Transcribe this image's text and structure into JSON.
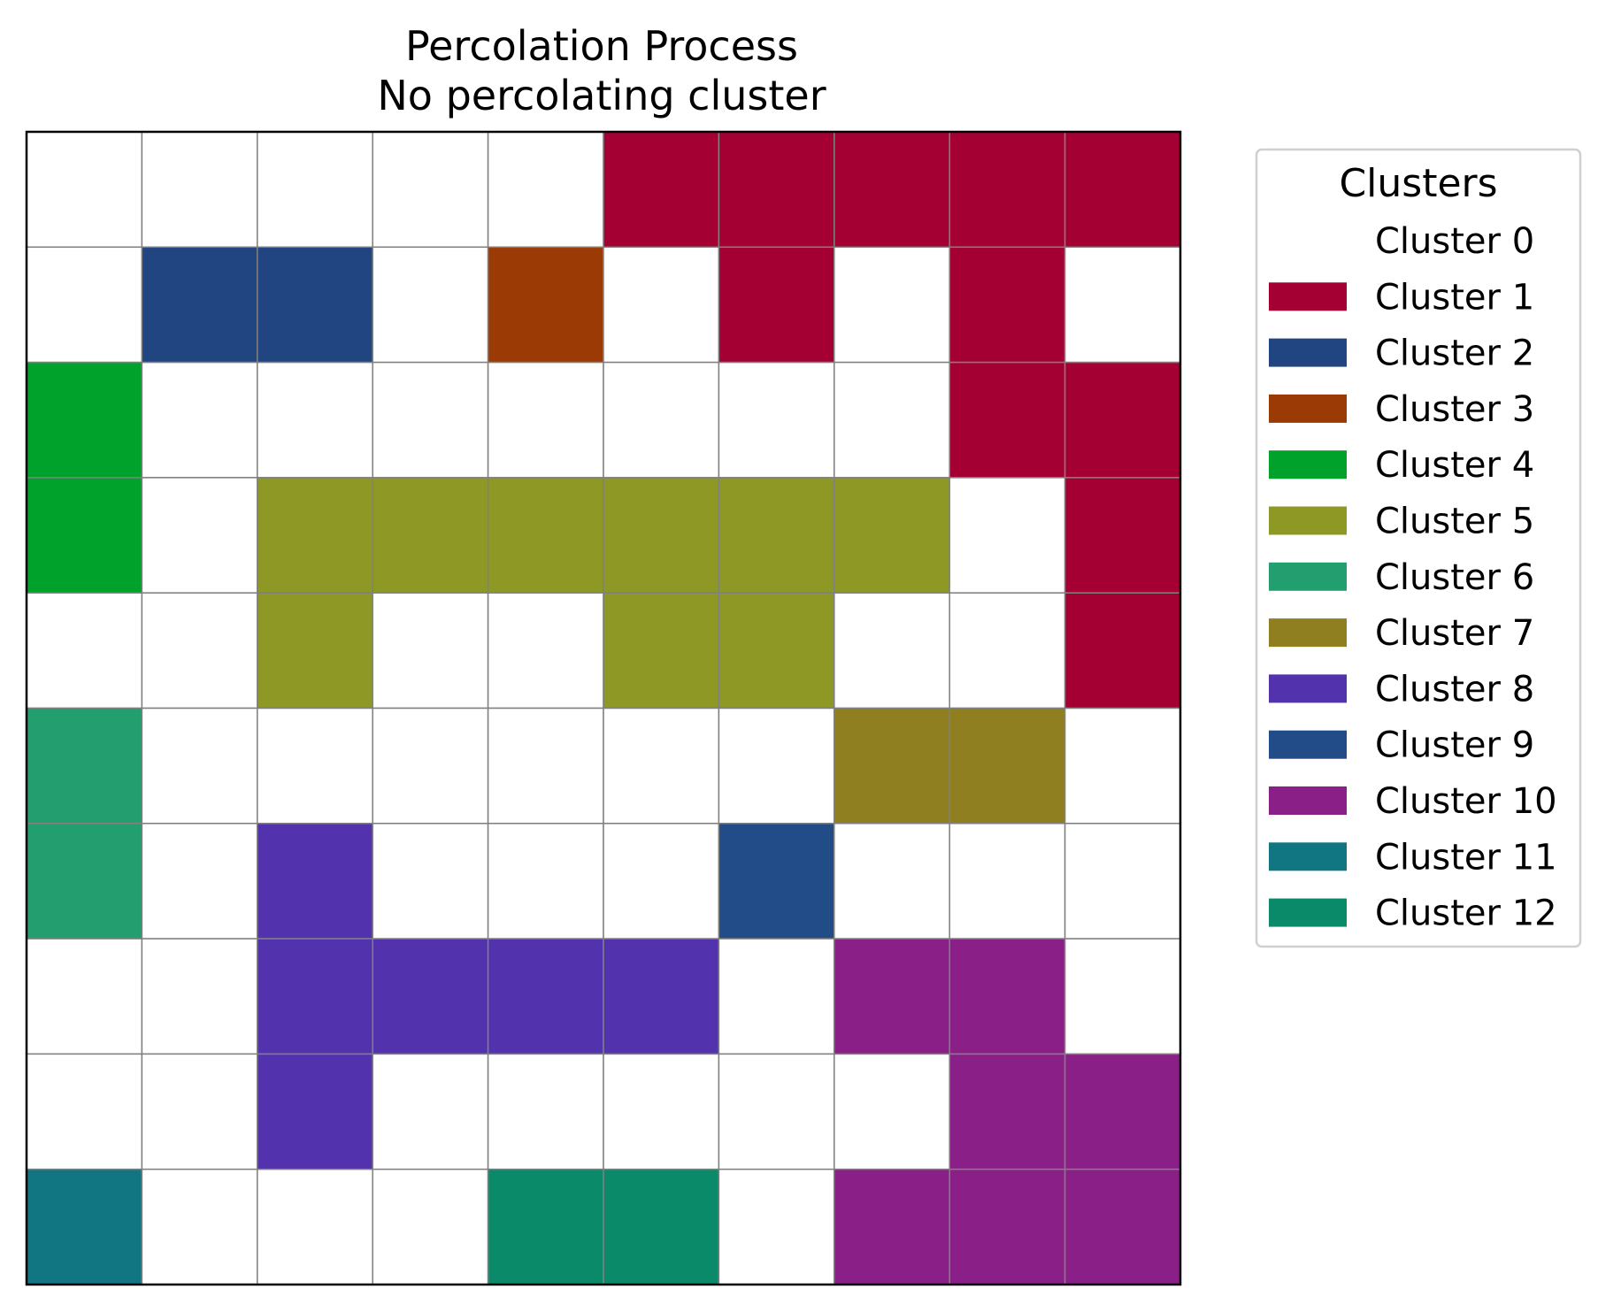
{
  "chart_data": {
    "type": "heatmap",
    "title": "Percolation Process",
    "subtitle": "No percolating cluster",
    "grid": true,
    "rows": 10,
    "cols": 10,
    "values": [
      [
        0,
        0,
        0,
        0,
        0,
        1,
        1,
        1,
        1,
        1
      ],
      [
        0,
        2,
        2,
        0,
        3,
        0,
        1,
        0,
        1,
        0
      ],
      [
        4,
        0,
        0,
        0,
        0,
        0,
        0,
        0,
        1,
        1
      ],
      [
        4,
        0,
        5,
        5,
        5,
        5,
        5,
        5,
        0,
        1
      ],
      [
        0,
        0,
        5,
        0,
        0,
        5,
        5,
        0,
        0,
        1
      ],
      [
        6,
        0,
        0,
        0,
        0,
        0,
        0,
        7,
        7,
        0
      ],
      [
        6,
        0,
        8,
        0,
        0,
        0,
        9,
        0,
        0,
        0
      ],
      [
        0,
        0,
        8,
        8,
        8,
        8,
        0,
        10,
        10,
        0
      ],
      [
        0,
        0,
        8,
        0,
        0,
        0,
        0,
        0,
        10,
        10
      ],
      [
        11,
        0,
        0,
        0,
        12,
        12,
        0,
        10,
        10,
        10
      ]
    ],
    "legend": {
      "title": "Clusters",
      "placement": "right",
      "entries": [
        {
          "label": "Cluster 0",
          "color": "#ffffff"
        },
        {
          "label": "Cluster 1",
          "color": "#a50034"
        },
        {
          "label": "Cluster 2",
          "color": "#214580"
        },
        {
          "label": "Cluster 3",
          "color": "#9c3a06"
        },
        {
          "label": "Cluster 4",
          "color": "#00a22c"
        },
        {
          "label": "Cluster 5",
          "color": "#8e9925"
        },
        {
          "label": "Cluster 6",
          "color": "#239e6e"
        },
        {
          "label": "Cluster 7",
          "color": "#907f21"
        },
        {
          "label": "Cluster 8",
          "color": "#5233ad"
        },
        {
          "label": "Cluster 9",
          "color": "#214c87"
        },
        {
          "label": "Cluster 10",
          "color": "#8a2087"
        },
        {
          "label": "Cluster 11",
          "color": "#117682"
        },
        {
          "label": "Cluster 12",
          "color": "#0a8a69"
        }
      ]
    }
  }
}
